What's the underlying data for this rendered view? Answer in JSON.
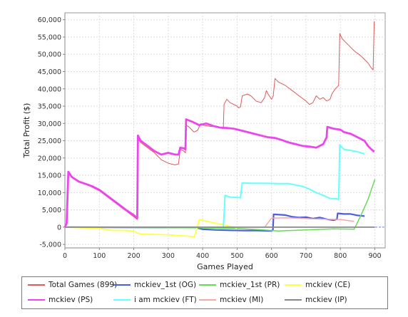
{
  "chart_data": {
    "type": "line",
    "xlabel": "Games Played",
    "ylabel": "Total Profit ($)",
    "xlim": [
      0,
      930
    ],
    "ylim": [
      -6000,
      62000
    ],
    "x_ticks": [
      0,
      100,
      200,
      300,
      400,
      500,
      600,
      700,
      800,
      900
    ],
    "x_tick_labels": [
      "0",
      "100",
      "200",
      "300",
      "400",
      "500",
      "600",
      "700",
      "800",
      "900"
    ],
    "y_ticks": [
      -5000,
      0,
      5000,
      10000,
      15000,
      20000,
      25000,
      30000,
      35000,
      40000,
      45000,
      50000,
      55000,
      60000
    ],
    "y_tick_labels": [
      "-5,000",
      "0",
      "5,000",
      "10,000",
      "15,000",
      "20,000",
      "25,000",
      "30,000",
      "35,000",
      "40,000",
      "45,000",
      "50,000",
      "55,000",
      "60,000"
    ],
    "grid": true,
    "legend_position": "bottom",
    "series": [
      {
        "name": "Total Games (899)",
        "color": "#e05a5a",
        "width": 1,
        "points": [
          [
            0,
            0
          ],
          [
            5,
            1000
          ],
          [
            10,
            15500
          ],
          [
            20,
            14500
          ],
          [
            40,
            13000
          ],
          [
            60,
            12500
          ],
          [
            80,
            11500
          ],
          [
            100,
            10500
          ],
          [
            120,
            9000
          ],
          [
            140,
            7500
          ],
          [
            160,
            6000
          ],
          [
            180,
            4500
          ],
          [
            200,
            3000
          ],
          [
            210,
            2200
          ],
          [
            212,
            25500
          ],
          [
            220,
            24500
          ],
          [
            240,
            23000
          ],
          [
            260,
            21500
          ],
          [
            280,
            19500
          ],
          [
            300,
            18500
          ],
          [
            320,
            18000
          ],
          [
            330,
            18300
          ],
          [
            335,
            22500
          ],
          [
            345,
            22000
          ],
          [
            350,
            21500
          ],
          [
            352,
            29500
          ],
          [
            360,
            29000
          ],
          [
            375,
            27500
          ],
          [
            385,
            28000
          ],
          [
            395,
            30000
          ],
          [
            400,
            29500
          ],
          [
            420,
            29200
          ],
          [
            440,
            29000
          ],
          [
            460,
            28500
          ],
          [
            462,
            35500
          ],
          [
            470,
            37000
          ],
          [
            480,
            36000
          ],
          [
            500,
            35000
          ],
          [
            505,
            34500
          ],
          [
            510,
            34800
          ],
          [
            515,
            38000
          ],
          [
            530,
            38500
          ],
          [
            540,
            38000
          ],
          [
            555,
            36500
          ],
          [
            570,
            36000
          ],
          [
            580,
            37500
          ],
          [
            585,
            39500
          ],
          [
            590,
            38500
          ],
          [
            600,
            37000
          ],
          [
            605,
            38000
          ],
          [
            610,
            43000
          ],
          [
            620,
            42000
          ],
          [
            640,
            41000
          ],
          [
            660,
            39500
          ],
          [
            680,
            38000
          ],
          [
            700,
            36500
          ],
          [
            710,
            35500
          ],
          [
            720,
            36000
          ],
          [
            730,
            38000
          ],
          [
            740,
            37000
          ],
          [
            750,
            37500
          ],
          [
            760,
            36500
          ],
          [
            770,
            37000
          ],
          [
            775,
            38500
          ],
          [
            785,
            40000
          ],
          [
            795,
            41000
          ],
          [
            798,
            56000
          ],
          [
            805,
            54500
          ],
          [
            820,
            53000
          ],
          [
            840,
            51000
          ],
          [
            860,
            49500
          ],
          [
            880,
            47500
          ],
          [
            890,
            46000
          ],
          [
            895,
            45500
          ],
          [
            898,
            59500
          ]
        ]
      },
      {
        "name": "mckiev_1st (OG)",
        "color": "#4a5fe0",
        "width": 2.2,
        "points": [
          [
            0,
            0
          ],
          [
            380,
            -100
          ],
          [
            400,
            -600
          ],
          [
            440,
            -800
          ],
          [
            480,
            -900
          ],
          [
            520,
            -1000
          ],
          [
            560,
            -1000
          ],
          [
            600,
            -1100
          ],
          [
            604,
            -800
          ],
          [
            606,
            3700
          ],
          [
            640,
            3500
          ],
          [
            660,
            3000
          ],
          [
            680,
            2800
          ],
          [
            700,
            2900
          ],
          [
            720,
            2500
          ],
          [
            740,
            2800
          ],
          [
            760,
            2300
          ],
          [
            780,
            2000
          ],
          [
            790,
            2300
          ],
          [
            792,
            4000
          ],
          [
            810,
            3800
          ],
          [
            830,
            3800
          ],
          [
            850,
            3400
          ],
          [
            870,
            3200
          ]
        ]
      },
      {
        "name": "mckiev_1st (PR)",
        "color": "#66dd55",
        "width": 1.5,
        "points": [
          [
            0,
            0
          ],
          [
            400,
            -200
          ],
          [
            500,
            -400
          ],
          [
            560,
            -700
          ],
          [
            620,
            -1100
          ],
          [
            700,
            -800
          ],
          [
            780,
            -500
          ],
          [
            840,
            -600
          ],
          [
            860,
            3500
          ],
          [
            880,
            8000
          ],
          [
            900,
            13800
          ]
        ]
      },
      {
        "name": "mckiev (CE)",
        "color": "#ffff44",
        "width": 1.8,
        "points": [
          [
            0,
            0
          ],
          [
            100,
            -400
          ],
          [
            140,
            -900
          ],
          [
            180,
            -1000
          ],
          [
            200,
            -1200
          ],
          [
            220,
            -2000
          ],
          [
            260,
            -2100
          ],
          [
            300,
            -2200
          ],
          [
            340,
            -2500
          ],
          [
            360,
            -2600
          ],
          [
            375,
            -2800
          ],
          [
            380,
            -1500
          ],
          [
            390,
            2200
          ],
          [
            410,
            1800
          ],
          [
            430,
            1300
          ],
          [
            450,
            900
          ],
          [
            470,
            500
          ],
          [
            490,
            0
          ],
          [
            500,
            -300
          ]
        ]
      },
      {
        "name": "mckiev (PS)",
        "color": "#ee44ee",
        "width": 2.8,
        "points": [
          [
            0,
            0
          ],
          [
            5,
            1000
          ],
          [
            10,
            16000
          ],
          [
            20,
            14500
          ],
          [
            40,
            13200
          ],
          [
            60,
            12500
          ],
          [
            80,
            11800
          ],
          [
            100,
            10800
          ],
          [
            120,
            9300
          ],
          [
            140,
            7800
          ],
          [
            160,
            6300
          ],
          [
            180,
            4800
          ],
          [
            200,
            3500
          ],
          [
            210,
            2600
          ],
          [
            212,
            26500
          ],
          [
            220,
            25000
          ],
          [
            240,
            23500
          ],
          [
            260,
            22000
          ],
          [
            280,
            21000
          ],
          [
            300,
            21500
          ],
          [
            320,
            21000
          ],
          [
            330,
            21000
          ],
          [
            335,
            23000
          ],
          [
            345,
            22800
          ],
          [
            350,
            22500
          ],
          [
            352,
            31200
          ],
          [
            370,
            30500
          ],
          [
            390,
            29500
          ],
          [
            410,
            30000
          ],
          [
            430,
            29300
          ],
          [
            450,
            28800
          ],
          [
            470,
            28700
          ],
          [
            490,
            28500
          ],
          [
            510,
            28000
          ],
          [
            530,
            27500
          ],
          [
            550,
            27000
          ],
          [
            570,
            26500
          ],
          [
            590,
            26000
          ],
          [
            610,
            25800
          ],
          [
            630,
            25200
          ],
          [
            650,
            24500
          ],
          [
            670,
            24000
          ],
          [
            690,
            23500
          ],
          [
            710,
            23300
          ],
          [
            730,
            23000
          ],
          [
            740,
            23500
          ],
          [
            750,
            24000
          ],
          [
            760,
            26000
          ],
          [
            762,
            29000
          ],
          [
            780,
            28500
          ],
          [
            800,
            28200
          ],
          [
            810,
            27500
          ],
          [
            830,
            27000
          ],
          [
            850,
            26000
          ],
          [
            870,
            25000
          ],
          [
            880,
            23500
          ],
          [
            890,
            22500
          ],
          [
            898,
            21800
          ]
        ]
      },
      {
        "name": "i am mckiev (FT)",
        "color": "#66ffff",
        "width": 2,
        "points": [
          [
            0,
            0
          ],
          [
            460,
            0
          ],
          [
            462,
            3500
          ],
          [
            465,
            9200
          ],
          [
            480,
            8700
          ],
          [
            500,
            8600
          ],
          [
            510,
            8500
          ],
          [
            515,
            12800
          ],
          [
            540,
            12700
          ],
          [
            580,
            12700
          ],
          [
            620,
            12600
          ],
          [
            650,
            12600
          ],
          [
            670,
            12200
          ],
          [
            690,
            11800
          ],
          [
            710,
            11000
          ],
          [
            730,
            10000
          ],
          [
            750,
            9200
          ],
          [
            770,
            8300
          ],
          [
            790,
            8200
          ],
          [
            795,
            8000
          ],
          [
            798,
            23800
          ],
          [
            810,
            22500
          ],
          [
            830,
            22200
          ],
          [
            850,
            21800
          ],
          [
            870,
            21200
          ]
        ]
      },
      {
        "name": "mckiev (MI)",
        "color": "#f4a8a8",
        "width": 1.5,
        "points": [
          [
            0,
            0
          ],
          [
            580,
            0
          ],
          [
            600,
            2600
          ],
          [
            640,
            2700
          ],
          [
            680,
            2600
          ],
          [
            720,
            2400
          ],
          [
            760,
            2300
          ],
          [
            800,
            2200
          ],
          [
            830,
            1800
          ],
          [
            840,
            1700
          ]
        ]
      },
      {
        "name": "mckiev (IP)",
        "color": "#888888",
        "width": 1.8,
        "points": [
          [
            0,
            0
          ],
          [
            300,
            0
          ],
          [
            600,
            0
          ],
          [
            900,
            0
          ]
        ]
      }
    ]
  }
}
